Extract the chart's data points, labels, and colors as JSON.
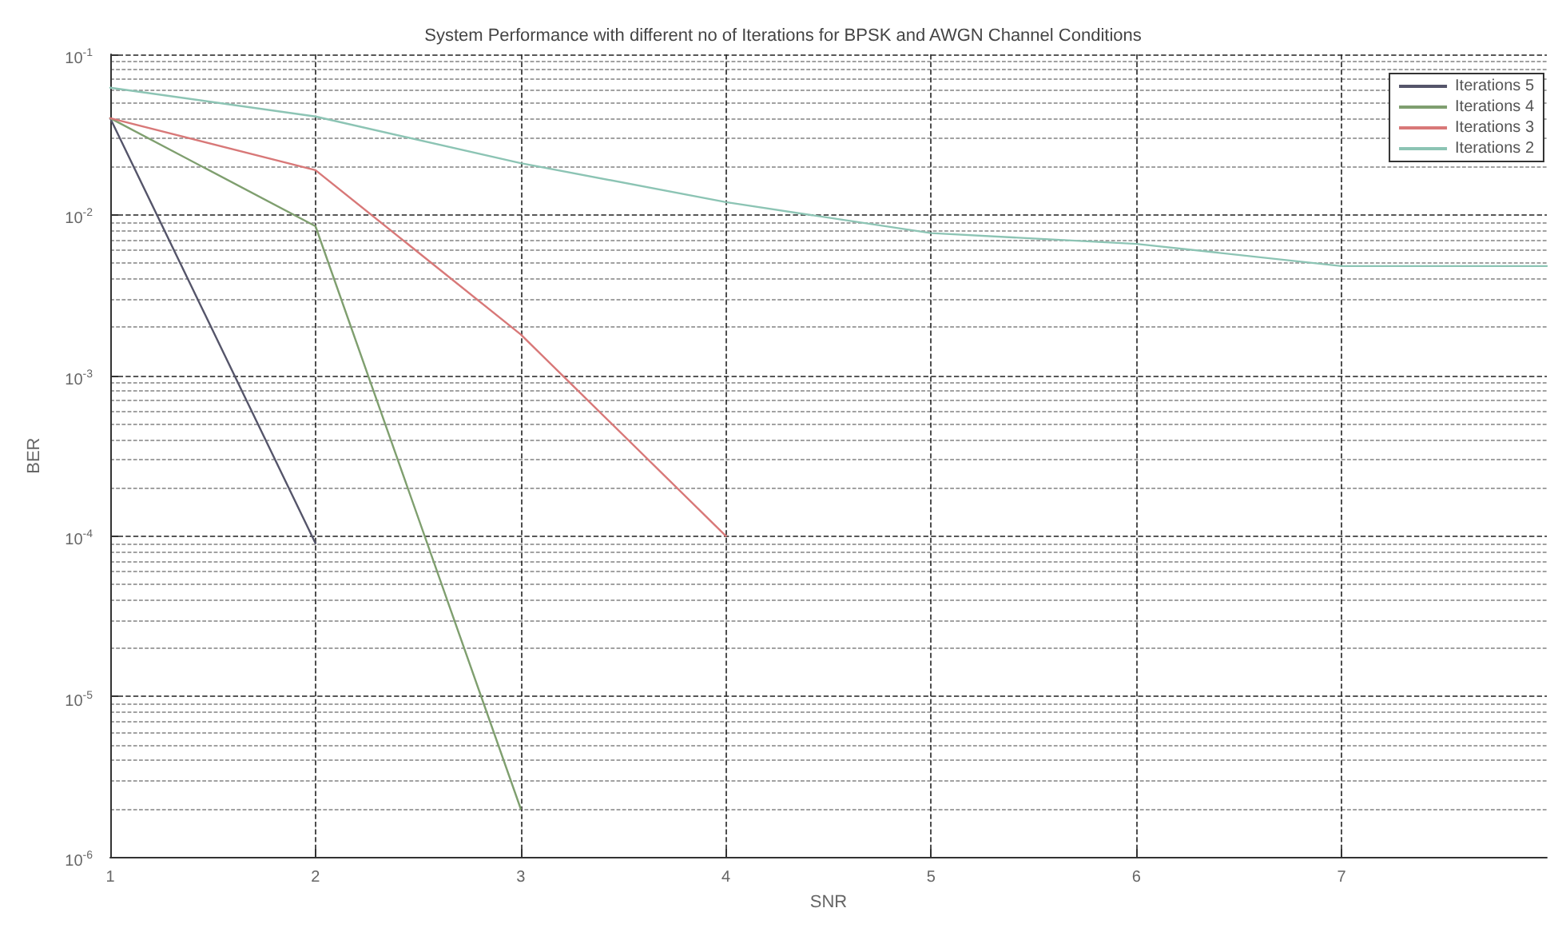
{
  "chart_data": {
    "type": "line",
    "title": "System Performance with different no of Iterations for BPSK and AWGN Channel Conditions",
    "xlabel": "SNR",
    "ylabel": "BER",
    "x": [
      1,
      2,
      3,
      4,
      5,
      6,
      7,
      8
    ],
    "series": [
      {
        "name": "Iterations 5",
        "color": "#55556a",
        "values": [
          0.04,
          9e-05,
          null,
          null,
          null,
          null,
          null,
          null
        ]
      },
      {
        "name": "Iterations 4",
        "color": "#7f9f6f",
        "values": [
          0.04,
          0.0085,
          2e-06,
          null,
          null,
          null,
          null,
          null
        ]
      },
      {
        "name": "Iterations 3",
        "color": "#d87878",
        "values": [
          0.04,
          0.019,
          0.0018,
          0.0001,
          null,
          null,
          null,
          null
        ]
      },
      {
        "name": "Iterations 2",
        "color": "#8cc4b4",
        "values": [
          0.062,
          0.041,
          0.021,
          0.012,
          0.0077,
          0.0066,
          0.0048,
          0.0048
        ]
      }
    ],
    "xlim": [
      1,
      8
    ],
    "xticks": [
      1,
      2,
      3,
      4,
      5,
      6,
      7
    ],
    "ylim": [
      1e-06,
      0.1
    ],
    "log": "y",
    "yticks": [
      {
        "value": 0.1,
        "label": "10$^{-1}$"
      },
      {
        "value": 0.01,
        "label": "10$^{-2}$"
      },
      {
        "value": 0.001,
        "label": "10$^{-3}$"
      },
      {
        "value": 0.0001,
        "label": "10$^{-4}$"
      },
      {
        "value": 1e-05,
        "label": "10$^{-5}$"
      },
      {
        "value": 1e-06,
        "label": "10$^{-6}$"
      }
    ],
    "grid": true,
    "legend": "top right",
    "marker": "none",
    "line_style": "solid"
  }
}
